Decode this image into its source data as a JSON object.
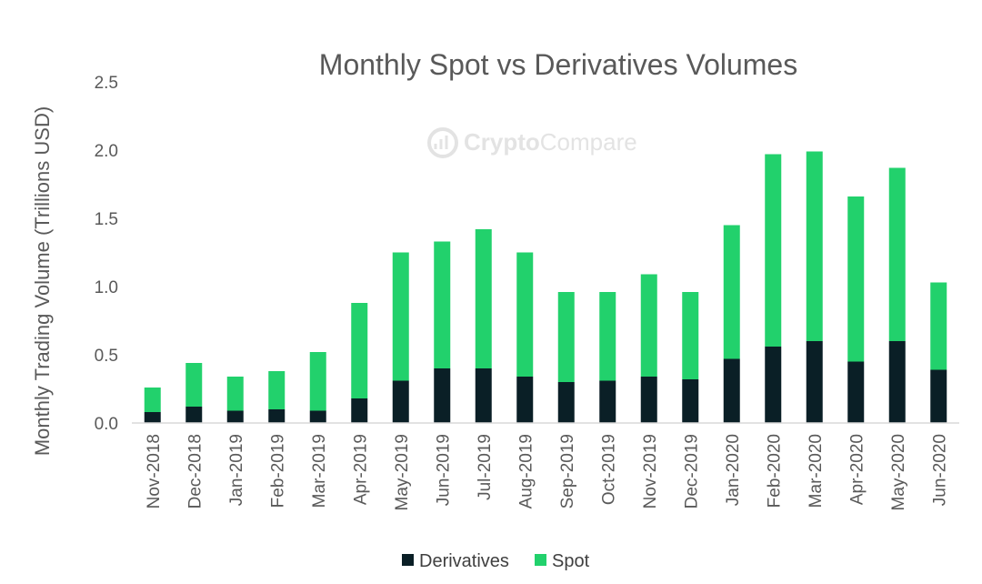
{
  "chart_data": {
    "type": "bar",
    "stacked": true,
    "title": "Monthly Spot vs Derivatives Volumes",
    "xlabel": "",
    "ylabel": "Monthly Trading Volume (Trillions USD)",
    "ylim": [
      0,
      2.5
    ],
    "yticks": [
      "0.0",
      "0.5",
      "1.0",
      "1.5",
      "2.0",
      "2.5"
    ],
    "grid": false,
    "legend": "bottom",
    "watermark": {
      "part1": "Crypto",
      "part2": "Compare"
    },
    "categories": [
      "Nov-2018",
      "Dec-2018",
      "Jan-2019",
      "Feb-2019",
      "Mar-2019",
      "Apr-2019",
      "May-2019",
      "Jun-2019",
      "Jul-2019",
      "Aug-2019",
      "Sep-2019",
      "Oct-2019",
      "Nov-2019",
      "Dec-2019",
      "Jan-2020",
      "Feb-2020",
      "Mar-2020",
      "Apr-2020",
      "May-2020",
      "Jun-2020"
    ],
    "series": [
      {
        "name": "Derivatives",
        "color": "#0a1f26",
        "values": [
          0.08,
          0.12,
          0.09,
          0.1,
          0.09,
          0.18,
          0.31,
          0.4,
          0.4,
          0.34,
          0.3,
          0.31,
          0.34,
          0.32,
          0.47,
          0.56,
          0.6,
          0.45,
          0.6,
          0.39
        ]
      },
      {
        "name": "Spot",
        "color": "#22d16c",
        "values": [
          0.18,
          0.32,
          0.25,
          0.28,
          0.43,
          0.7,
          0.94,
          0.93,
          1.02,
          0.91,
          0.66,
          0.65,
          0.75,
          0.64,
          0.98,
          1.41,
          1.39,
          1.21,
          1.27,
          0.64
        ]
      }
    ]
  }
}
